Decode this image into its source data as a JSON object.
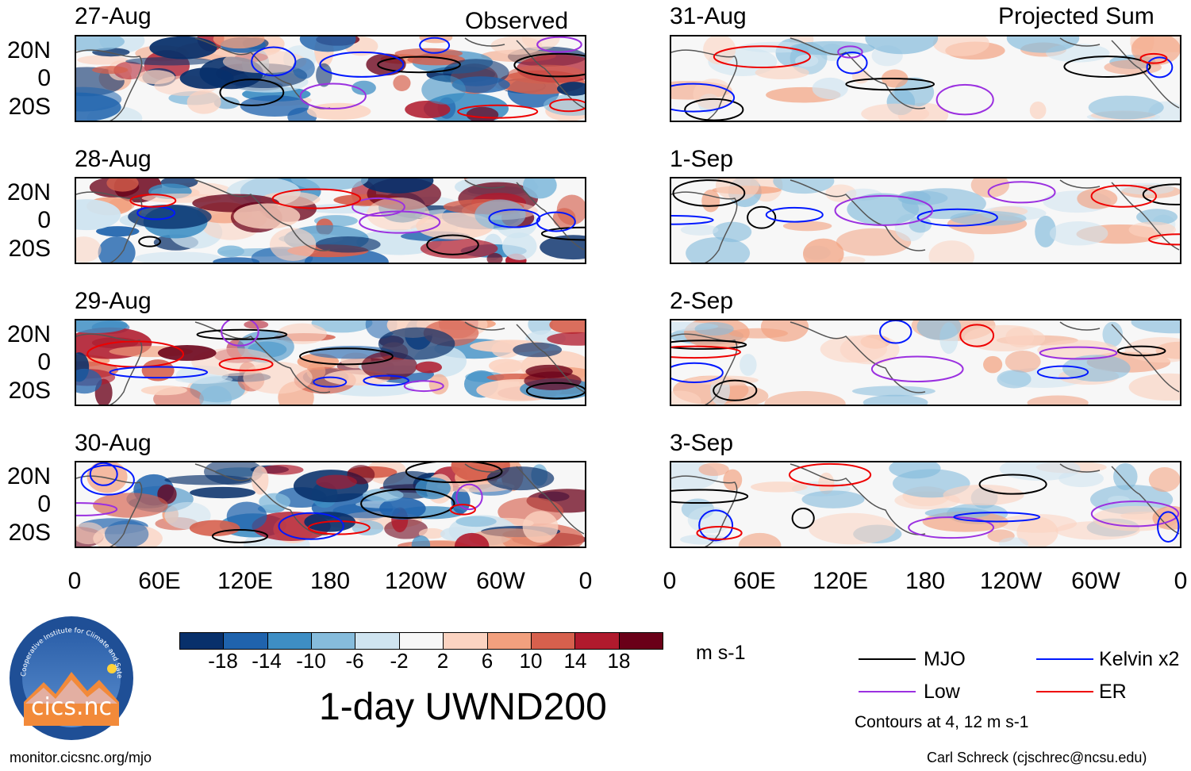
{
  "chart_data": {
    "type": "heatmap",
    "title": "1-day UWND200",
    "units": "m s-1",
    "columns": [
      {
        "heading": "Observed",
        "dates": [
          "27-Aug",
          "28-Aug",
          "29-Aug",
          "30-Aug"
        ]
      },
      {
        "heading": "Projected Sum",
        "dates": [
          "31-Aug",
          "1-Sep",
          "2-Sep",
          "3-Sep"
        ]
      }
    ],
    "x_ticks": [
      "0",
      "60E",
      "120E",
      "180",
      "120W",
      "60W",
      "0"
    ],
    "y_ticks": [
      "20N",
      "0",
      "20S"
    ],
    "colorbar": {
      "levels": [
        "-18",
        "-14",
        "-10",
        "-6",
        "-2",
        "2",
        "6",
        "10",
        "14",
        "18"
      ],
      "colors": [
        "#08306b",
        "#1f63ad",
        "#3e8ec4",
        "#86bcdc",
        "#cfe4f0",
        "#f7f7f7",
        "#fbd3c1",
        "#f2a07e",
        "#d6604d",
        "#b01a2d",
        "#6a0018"
      ]
    },
    "legend": [
      {
        "label": "MJO",
        "color": "#000000"
      },
      {
        "label": "Kelvin x2",
        "color": "#0018ff"
      },
      {
        "label": "Low",
        "color": "#9b30e0"
      },
      {
        "label": "ER",
        "color": "#ee0000"
      }
    ],
    "contour_note": "Contours at 4, 12 m s-1"
  },
  "footer": {
    "logo_text": "cics.nc",
    "logo_ring_text": "Cooperative Institute for Climate and Satellites",
    "url": "monitor.cicsnc.org/mjo",
    "credit": "Carl Schreck (cjschrec@ncsu.edu)"
  }
}
